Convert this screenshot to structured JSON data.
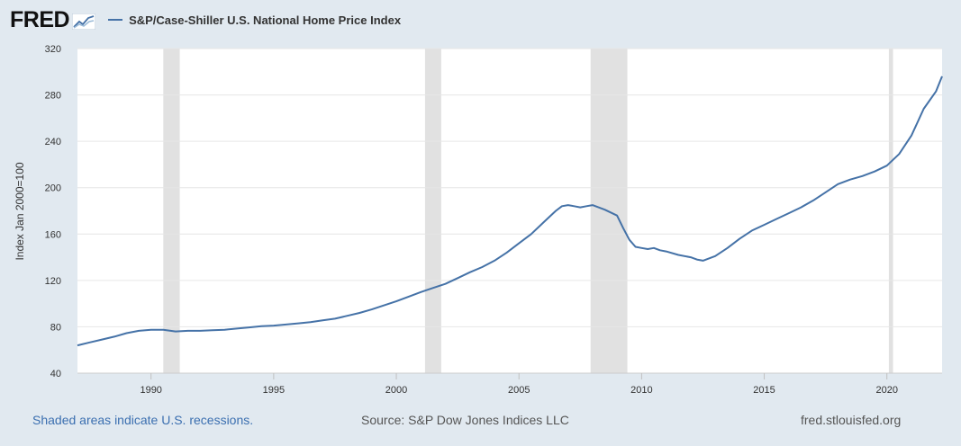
{
  "header": {
    "logo_text": "FRED",
    "series_label": "S&P/Case-Shiller U.S. National Home Price Index"
  },
  "footer": {
    "recession_note": "Shaded areas indicate U.S. recessions.",
    "source": "Source: S&P Dow Jones Indices LLC",
    "site": "fred.stlouisfed.org"
  },
  "colors": {
    "line": "#4572a7",
    "recession": "#e1e1e1",
    "gridline": "#e6e6e6",
    "background": "#e1e9f0"
  },
  "chart_data": {
    "type": "line",
    "ylabel": "Index Jan 2000=100",
    "xlim": [
      1987.0,
      2022.25
    ],
    "ylim": [
      40,
      320
    ],
    "xticks": [
      1990,
      1995,
      2000,
      2005,
      2010,
      2015,
      2020
    ],
    "yticks": [
      40,
      80,
      120,
      160,
      200,
      240,
      280,
      320
    ],
    "grid": "horizontal",
    "recessions": [
      [
        1990.5,
        1991.17
      ],
      [
        2001.17,
        2001.83
      ],
      [
        2007.92,
        2009.42
      ],
      [
        2020.08,
        2020.25
      ]
    ],
    "series": [
      {
        "name": "S&P/Case-Shiller U.S. National Home Price Index",
        "x": [
          1987.0,
          1987.5,
          1988.0,
          1988.5,
          1989.0,
          1989.5,
          1990.0,
          1990.5,
          1991.0,
          1991.5,
          1992.0,
          1992.5,
          1993.0,
          1993.5,
          1994.0,
          1994.5,
          1995.0,
          1995.5,
          1996.0,
          1996.5,
          1997.0,
          1997.5,
          1998.0,
          1998.5,
          1999.0,
          1999.5,
          2000.0,
          2000.5,
          2001.0,
          2001.5,
          2002.0,
          2002.5,
          2003.0,
          2003.5,
          2004.0,
          2004.5,
          2005.0,
          2005.5,
          2006.0,
          2006.25,
          2006.5,
          2006.75,
          2007.0,
          2007.25,
          2007.5,
          2007.75,
          2008.0,
          2008.5,
          2009.0,
          2009.25,
          2009.5,
          2009.75,
          2010.0,
          2010.25,
          2010.5,
          2010.75,
          2011.0,
          2011.5,
          2012.0,
          2012.25,
          2012.5,
          2013.0,
          2013.5,
          2014.0,
          2014.5,
          2015.0,
          2015.5,
          2016.0,
          2016.5,
          2017.0,
          2017.5,
          2018.0,
          2018.5,
          2019.0,
          2019.5,
          2020.0,
          2020.5,
          2021.0,
          2021.5,
          2022.0,
          2022.25
        ],
        "values": [
          64,
          66.5,
          69,
          71.5,
          74.5,
          76.5,
          77.5,
          77.5,
          76,
          76.5,
          76.5,
          77,
          77.5,
          78.5,
          79.5,
          80.5,
          81,
          82,
          83,
          84,
          85.5,
          87,
          89.5,
          92,
          95,
          98.5,
          102,
          106,
          110,
          113.5,
          117,
          122,
          127,
          131.5,
          137,
          144,
          152,
          160,
          170,
          175,
          180,
          184,
          185,
          184,
          183,
          184,
          185,
          181,
          176,
          165,
          155,
          149,
          148,
          147,
          148,
          146,
          145,
          142,
          140,
          138,
          137,
          141,
          148,
          156,
          163,
          168,
          173,
          178,
          183,
          189,
          196,
          203,
          207,
          210,
          214,
          219,
          229,
          245,
          268,
          283,
          296
        ]
      }
    ]
  }
}
